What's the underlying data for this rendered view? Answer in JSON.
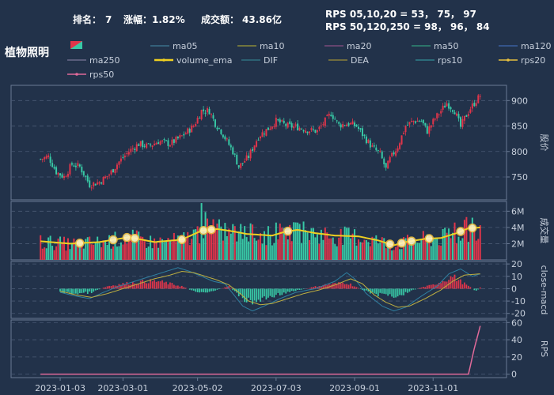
{
  "header": {
    "stock_name": "植物照明",
    "rank_label": "排名：",
    "rank_value": "7",
    "change_label": "涨幅：",
    "change_value": "1.82%",
    "change_color": "#e0354a",
    "turnover_label": "成交额：",
    "turnover_value": "43.86亿",
    "rps_line1": "RPS 05,10,20 = 53， 75， 97",
    "rps_line2": "RPS 50,120,250 = 98， 96， 84"
  },
  "legend": [
    {
      "name": "ma05",
      "color": "#3a6f8a"
    },
    {
      "name": "ma10",
      "color": "#8a8a3a"
    },
    {
      "name": "ma20",
      "color": "#7a4a7a"
    },
    {
      "name": "ma50",
      "color": "#2f8a74"
    },
    {
      "name": "ma120",
      "color": "#3a5fa0"
    },
    {
      "name": "ma250",
      "color": "#6a6a8a"
    },
    {
      "name": "volume_ema",
      "color": "#f0d020"
    },
    {
      "name": "DIF",
      "color": "#2f6f7f"
    },
    {
      "name": "DEA",
      "color": "#8a7f3a"
    },
    {
      "name": "rps10",
      "color": "#2f7f8a"
    },
    {
      "name": "rps20",
      "color": "#e8c040"
    },
    {
      "name": "rps50",
      "color": "#e06a9a"
    }
  ],
  "colors": {
    "up": "#e0354a",
    "down": "#38c9a6",
    "volume_ema": "#f0d020",
    "macd_dif": "#2f7fa0",
    "macd_dea": "#c0b040",
    "rps50": "#e06a9a",
    "grid": "#4a5a74",
    "axis": "#6a7a94"
  },
  "chart_data": {
    "type": "candlestick",
    "x_ticks": [
      "2023-01-03",
      "2023-03-01",
      "2023-05-02",
      "2023-07-03",
      "2023-09-01",
      "2023-11-01"
    ],
    "panels": [
      {
        "name": "price",
        "ylabel": "股价",
        "yticks": [
          750,
          800,
          850,
          900
        ],
        "ylim": [
          705,
          930
        ],
        "close_anchors": [
          [
            0,
            785
          ],
          [
            4,
            790
          ],
          [
            8,
            760
          ],
          [
            12,
            750
          ],
          [
            16,
            775
          ],
          [
            20,
            770
          ],
          [
            25,
            735
          ],
          [
            30,
            740
          ],
          [
            35,
            755
          ],
          [
            40,
            780
          ],
          [
            45,
            800
          ],
          [
            50,
            815
          ],
          [
            55,
            810
          ],
          [
            60,
            820
          ],
          [
            66,
            815
          ],
          [
            72,
            830
          ],
          [
            78,
            850
          ],
          [
            82,
            880
          ],
          [
            86,
            880
          ],
          [
            89,
            855
          ],
          [
            92,
            840
          ],
          [
            95,
            820
          ],
          [
            98,
            800
          ],
          [
            101,
            770
          ],
          [
            106,
            790
          ],
          [
            111,
            830
          ],
          [
            116,
            845
          ],
          [
            120,
            860
          ],
          [
            126,
            850
          ],
          [
            131,
            848
          ],
          [
            136,
            842
          ],
          [
            141,
            840
          ],
          [
            145,
            860
          ],
          [
            148,
            875
          ],
          [
            152,
            852
          ],
          [
            157,
            855
          ],
          [
            161,
            850
          ],
          [
            165,
            828
          ],
          [
            169,
            808
          ],
          [
            173,
            795
          ],
          [
            176,
            765
          ],
          [
            178,
            785
          ],
          [
            182,
            810
          ],
          [
            186,
            850
          ],
          [
            190,
            860
          ],
          [
            194,
            860
          ],
          [
            197,
            840
          ],
          [
            201,
            865
          ],
          [
            204,
            880
          ],
          [
            207,
            895
          ],
          [
            211,
            880
          ],
          [
            214,
            848
          ],
          [
            216,
            865
          ],
          [
            219,
            885
          ],
          [
            222,
            900
          ],
          [
            224,
            910
          ]
        ]
      },
      {
        "name": "volume",
        "ylabel": "成交量",
        "yticks": [
          "2M",
          "4M",
          "6M"
        ],
        "ytick_values": [
          2,
          4,
          6
        ],
        "ylim": [
          0,
          7.2
        ],
        "unit": "M",
        "volume_ema_anchors": [
          [
            0,
            2.3
          ],
          [
            15,
            2.0
          ],
          [
            30,
            2.2
          ],
          [
            45,
            2.8
          ],
          [
            58,
            2.2
          ],
          [
            72,
            2.5
          ],
          [
            82,
            3.6
          ],
          [
            90,
            3.8
          ],
          [
            96,
            3.6
          ],
          [
            105,
            3.2
          ],
          [
            118,
            3.0
          ],
          [
            125,
            3.5
          ],
          [
            131,
            3.7
          ],
          [
            140,
            3.3
          ],
          [
            150,
            3.0
          ],
          [
            162,
            2.9
          ],
          [
            172,
            2.4
          ],
          [
            180,
            1.8
          ],
          [
            186,
            2.2
          ],
          [
            196,
            2.6
          ],
          [
            204,
            2.7
          ],
          [
            212,
            3.3
          ],
          [
            218,
            3.9
          ],
          [
            224,
            4.0
          ]
        ],
        "spike_bars": [
          [
            82,
            7.0
          ],
          [
            84,
            5.9
          ],
          [
            91,
            5.0
          ],
          [
            107,
            4.5
          ],
          [
            120,
            4.6
          ],
          [
            131,
            4.6
          ],
          [
            211,
            4.6
          ],
          [
            220,
            5.2
          ]
        ],
        "markers_on_ema_index": [
          20,
          37,
          44,
          48,
          72,
          83,
          87,
          126,
          178,
          184,
          189,
          198,
          214,
          220
        ]
      },
      {
        "name": "macd",
        "ylabel": "close-macd",
        "yticks": [
          -20,
          -10,
          0,
          10,
          20
        ],
        "ylim": [
          -24,
          22
        ],
        "dif_anchors": [
          [
            10,
            -3
          ],
          [
            18,
            -6
          ],
          [
            25,
            -8
          ],
          [
            32,
            -3
          ],
          [
            40,
            2
          ],
          [
            48,
            6
          ],
          [
            56,
            10
          ],
          [
            64,
            14
          ],
          [
            70,
            17
          ],
          [
            76,
            14
          ],
          [
            82,
            10
          ],
          [
            88,
            6
          ],
          [
            94,
            4
          ],
          [
            98,
            -4
          ],
          [
            103,
            -14
          ],
          [
            108,
            -18
          ],
          [
            114,
            -14
          ],
          [
            122,
            -8
          ],
          [
            130,
            -3
          ],
          [
            140,
            0
          ],
          [
            150,
            6
          ],
          [
            156,
            13
          ],
          [
            160,
            8
          ],
          [
            166,
            -4
          ],
          [
            174,
            -14
          ],
          [
            180,
            -18
          ],
          [
            186,
            -15
          ],
          [
            194,
            -6
          ],
          [
            202,
            2
          ],
          [
            208,
            12
          ],
          [
            214,
            16
          ],
          [
            220,
            10
          ],
          [
            224,
            12
          ]
        ],
        "dea_anchors": [
          [
            10,
            -2
          ],
          [
            18,
            -5
          ],
          [
            26,
            -7
          ],
          [
            34,
            -4
          ],
          [
            42,
            0
          ],
          [
            50,
            4
          ],
          [
            58,
            8
          ],
          [
            66,
            11
          ],
          [
            72,
            14
          ],
          [
            78,
            13
          ],
          [
            84,
            10
          ],
          [
            90,
            7
          ],
          [
            96,
            3
          ],
          [
            101,
            -3
          ],
          [
            106,
            -10
          ],
          [
            112,
            -13
          ],
          [
            118,
            -12
          ],
          [
            126,
            -8
          ],
          [
            134,
            -4
          ],
          [
            142,
            -1
          ],
          [
            150,
            3
          ],
          [
            158,
            8
          ],
          [
            164,
            4
          ],
          [
            170,
            -5
          ],
          [
            176,
            -11
          ],
          [
            182,
            -15
          ],
          [
            188,
            -14
          ],
          [
            196,
            -8
          ],
          [
            204,
            -1
          ],
          [
            210,
            6
          ],
          [
            216,
            11
          ],
          [
            224,
            12
          ]
        ],
        "hist_anchors": [
          [
            10,
            -3
          ],
          [
            18,
            -4
          ],
          [
            26,
            -3
          ],
          [
            34,
            2
          ],
          [
            42,
            4
          ],
          [
            48,
            5
          ],
          [
            54,
            6
          ],
          [
            60,
            6
          ],
          [
            66,
            4
          ],
          [
            72,
            2
          ],
          [
            78,
            -2
          ],
          [
            84,
            -3
          ],
          [
            90,
            -1
          ],
          [
            96,
            2
          ],
          [
            100,
            -4
          ],
          [
            104,
            -9
          ],
          [
            108,
            -11
          ],
          [
            114,
            -8
          ],
          [
            120,
            -5
          ],
          [
            126,
            -3
          ],
          [
            132,
            -1
          ],
          [
            138,
            1
          ],
          [
            144,
            3
          ],
          [
            150,
            4
          ],
          [
            156,
            5
          ],
          [
            160,
            2
          ],
          [
            164,
            -1
          ],
          [
            168,
            -3
          ],
          [
            172,
            -5
          ],
          [
            176,
            -4
          ],
          [
            180,
            -6
          ],
          [
            184,
            -5
          ],
          [
            188,
            -2
          ],
          [
            194,
            1
          ],
          [
            200,
            3
          ],
          [
            206,
            7
          ],
          [
            210,
            10
          ],
          [
            214,
            6
          ],
          [
            218,
            2
          ],
          [
            222,
            -2
          ],
          [
            224,
            1
          ]
        ]
      },
      {
        "name": "rps",
        "ylabel": "RPS",
        "yticks": [
          0,
          20,
          40,
          60
        ],
        "ylim": [
          -4,
          63
        ],
        "rps50_anchors": [
          [
            0,
            0
          ],
          [
            218,
            0
          ],
          [
            221,
            30
          ],
          [
            224,
            56
          ]
        ]
      }
    ],
    "n_days": 225,
    "x_tick_indices": [
      10,
      42,
      80,
      120,
      160,
      200
    ]
  }
}
